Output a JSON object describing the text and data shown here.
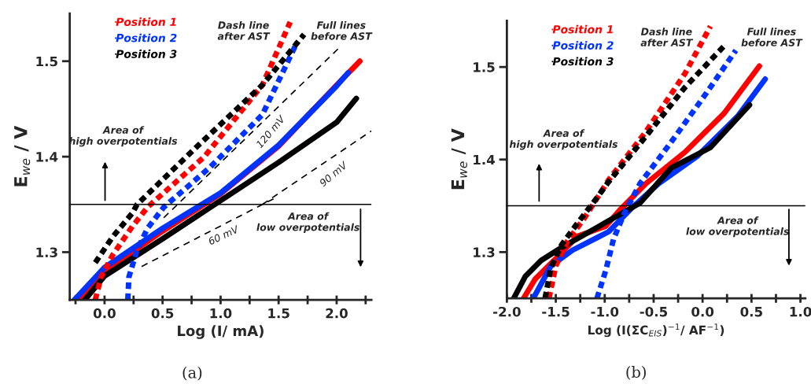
{
  "chart_data": [
    {
      "type": "line",
      "xlabel": "Log (I/ mA)",
      "ylabel": "E$_{we}$ / V",
      "xlim": [
        -0.3,
        2.3
      ],
      "ylim": [
        1.25,
        1.55
      ],
      "xticks": [
        {
          "value": -0.25,
          "label": null
        },
        {
          "value": 0,
          "label": "0.0"
        },
        {
          "value": 0.25,
          "label": null
        },
        {
          "value": 0.5,
          "label": "0.5"
        },
        {
          "value": 0.75,
          "label": null
        },
        {
          "value": 1,
          "label": "1.0"
        },
        {
          "value": 1.25,
          "label": null
        },
        {
          "value": 1.5,
          "label": "1.5"
        },
        {
          "value": 1.75,
          "label": null
        },
        {
          "value": 2,
          "label": "2.0"
        },
        {
          "value": 2.25,
          "label": null
        }
      ],
      "yticks": [
        1.3,
        1.4,
        1.5
      ],
      "grid": false,
      "legend": "top left",
      "marker": "none",
      "ref_lines": [
        {
          "axis": "y",
          "value": 1.35,
          "color": "#000000",
          "line_style": "solid"
        }
      ],
      "series": [
        {
          "name": "Position 1",
          "color": "#ff0000",
          "line_style": "solid",
          "x": [
            -0.22,
            0.0,
            0.5,
            1.0,
            1.5,
            2.0,
            2.2
          ],
          "values": [
            1.25,
            1.28,
            1.322,
            1.361,
            1.411,
            1.475,
            1.5
          ]
        },
        {
          "name": "Position 2",
          "color": "#0033ff",
          "line_style": "solid",
          "x": [
            -0.26,
            0.0,
            0.5,
            1.0,
            1.5,
            2.0,
            2.1
          ],
          "values": [
            1.25,
            1.284,
            1.325,
            1.362,
            1.412,
            1.474,
            1.488
          ]
        },
        {
          "name": "Position 3",
          "color": "#000000",
          "line_style": "solid",
          "x": [
            -0.17,
            0.0,
            0.5,
            1.0,
            1.5,
            2.0,
            2.17
          ],
          "values": [
            1.25,
            1.275,
            1.314,
            1.354,
            1.394,
            1.436,
            1.461
          ]
        },
        {
          "color": "#ff0000",
          "line_style": "dotted",
          "x": [
            -0.08,
            -0.03,
            0.07,
            0.24,
            0.37,
            0.86,
            1.36,
            1.6
          ],
          "values": [
            1.25,
            1.274,
            1.297,
            1.327,
            1.347,
            1.4,
            1.475,
            1.541
          ]
        },
        {
          "color": "#0033ff",
          "line_style": "dotted",
          "x": [
            0.2,
            0.21,
            0.28,
            0.37,
            0.51,
            0.91,
            1.36,
            1.66
          ],
          "values": [
            1.25,
            1.274,
            1.302,
            1.325,
            1.347,
            1.389,
            1.444,
            1.52
          ]
        },
        {
          "color": "#000000",
          "line_style": "dotted",
          "x": [
            -0.08,
            0.07,
            0.24,
            0.28,
            0.8,
            1.36,
            1.72
          ],
          "values": [
            1.289,
            1.316,
            1.341,
            1.35,
            1.411,
            1.475,
            1.528
          ]
        },
        {
          "color": "#000000",
          "line_style": "dashed",
          "x": [
            0.51,
            2.03
          ],
          "values": [
            1.336,
            1.515
          ]
        },
        {
          "color": "#000000",
          "line_style": "dashed",
          "x": [
            1.36,
            2.3
          ],
          "values": [
            1.35,
            1.427
          ]
        },
        {
          "color": "#000000",
          "line_style": "dashed",
          "x": [
            0.32,
            1.49
          ],
          "values": [
            1.285,
            1.358
          ]
        }
      ],
      "annotations": [
        "Dash line\nafter AST",
        "Full lines\nbefore AST",
        "Area of\nhigh overpotentials",
        "Area of\nlow overpotentials",
        "(a)",
        "120 mV",
        "90 mV",
        "60 mV"
      ]
    },
    {
      "type": "line",
      "xlabel": "Log (I(ΣC$_{EIS}$)$^{−1}$/ AF$^{−1}$)",
      "ylabel": "E$_{we}$ / V",
      "xlim": [
        -2.0,
        1.05
      ],
      "ylim": [
        1.25,
        1.55
      ],
      "xticks": [
        {
          "value": -2,
          "label": "-2.0"
        },
        {
          "value": -1.75,
          "label": null
        },
        {
          "value": -1.5,
          "label": "-1.5"
        },
        {
          "value": -1.25,
          "label": null
        },
        {
          "value": -1,
          "label": "-1.0"
        },
        {
          "value": -0.75,
          "label": null
        },
        {
          "value": -0.5,
          "label": "-0.5"
        },
        {
          "value": -0.25,
          "label": null
        },
        {
          "value": 0,
          "label": "0.0"
        },
        {
          "value": 0.25,
          "label": null
        },
        {
          "value": 0.5,
          "label": "0.5"
        },
        {
          "value": 0.75,
          "label": null
        },
        {
          "value": 1,
          "label": "1.0"
        }
      ],
      "yticks": [
        1.3,
        1.4,
        1.5
      ],
      "grid": false,
      "legend": "top left",
      "marker": "none",
      "ref_lines": [
        {
          "axis": "y",
          "value": 1.35,
          "color": "#000000",
          "line_style": "solid"
        }
      ],
      "series": [
        {
          "name": "Position 1",
          "color": "#ff0000",
          "line_style": "solid",
          "x": [
            -1.83,
            -1.71,
            -1.49,
            -1.28,
            -0.99,
            -0.85,
            -0.58,
            -0.18,
            0.22,
            0.58
          ],
          "values": [
            1.25,
            1.271,
            1.294,
            1.317,
            1.328,
            1.345,
            1.374,
            1.408,
            1.45,
            1.501
          ]
        },
        {
          "name": "Position 2",
          "color": "#0033ff",
          "line_style": "solid",
          "x": [
            -1.73,
            -1.55,
            -1.33,
            -0.96,
            -0.72,
            -0.45,
            -0.05,
            0.36,
            0.64
          ],
          "values": [
            1.25,
            1.285,
            1.302,
            1.322,
            1.348,
            1.374,
            1.404,
            1.447,
            1.487
          ]
        },
        {
          "name": "Position 3",
          "color": "#000000",
          "line_style": "solid",
          "x": [
            -1.93,
            -1.81,
            -1.65,
            -1.44,
            -0.64,
            -0.32,
            0.08,
            0.48
          ],
          "values": [
            1.25,
            1.274,
            1.291,
            1.305,
            1.353,
            1.391,
            1.413,
            1.459
          ]
        },
        {
          "color": "#ff0000",
          "line_style": "dotted",
          "x": [
            -1.57,
            -1.5,
            -1.38,
            -1.2,
            -0.96,
            -0.58,
            -0.18,
            0.08
          ],
          "values": [
            1.25,
            1.285,
            1.312,
            1.338,
            1.378,
            1.43,
            1.493,
            1.544
          ]
        },
        {
          "color": "#0033ff",
          "line_style": "dotted",
          "x": [
            -1.08,
            -0.99,
            -0.91,
            -0.8,
            -0.64,
            -0.32,
            0.04,
            0.34
          ],
          "values": [
            1.25,
            1.28,
            1.314,
            1.342,
            1.374,
            1.419,
            1.472,
            1.518
          ]
        },
        {
          "color": "#000000",
          "line_style": "dotted",
          "x": [
            -1.61,
            -1.55,
            -1.44,
            -1.28,
            -1.12,
            -0.96,
            -0.58,
            -0.18,
            0.24
          ],
          "values": [
            1.25,
            1.283,
            1.308,
            1.331,
            1.353,
            1.376,
            1.425,
            1.478,
            1.525
          ]
        }
      ],
      "annotations": [
        "Dash line\nafter AST",
        "Full lines\nbefore AST",
        "Area of\nhigh overpotentials",
        "Area of\nlow overpotentials",
        "(b)"
      ]
    }
  ]
}
